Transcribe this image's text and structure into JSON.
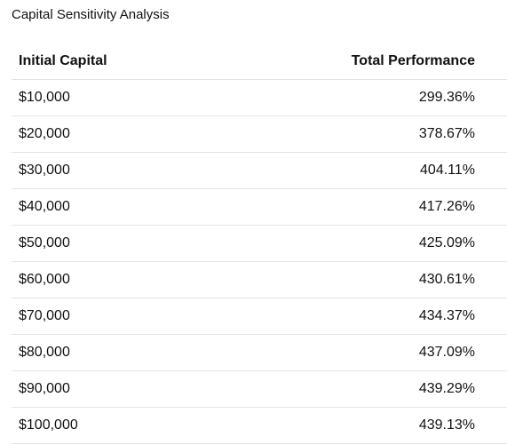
{
  "panel": {
    "title": "Capital Sensitivity Analysis"
  },
  "table": {
    "headers": {
      "initial_capital": "Initial Capital",
      "total_performance": "Total Performance"
    },
    "rows": [
      {
        "capital": "$10,000",
        "performance": "299.36%"
      },
      {
        "capital": "$20,000",
        "performance": "378.67%"
      },
      {
        "capital": "$30,000",
        "performance": "404.11%"
      },
      {
        "capital": "$40,000",
        "performance": "417.26%"
      },
      {
        "capital": "$50,000",
        "performance": "425.09%"
      },
      {
        "capital": "$60,000",
        "performance": "430.61%"
      },
      {
        "capital": "$70,000",
        "performance": "434.37%"
      },
      {
        "capital": "$80,000",
        "performance": "437.09%"
      },
      {
        "capital": "$90,000",
        "performance": "439.29%"
      },
      {
        "capital": "$100,000",
        "performance": "439.13%"
      }
    ]
  }
}
